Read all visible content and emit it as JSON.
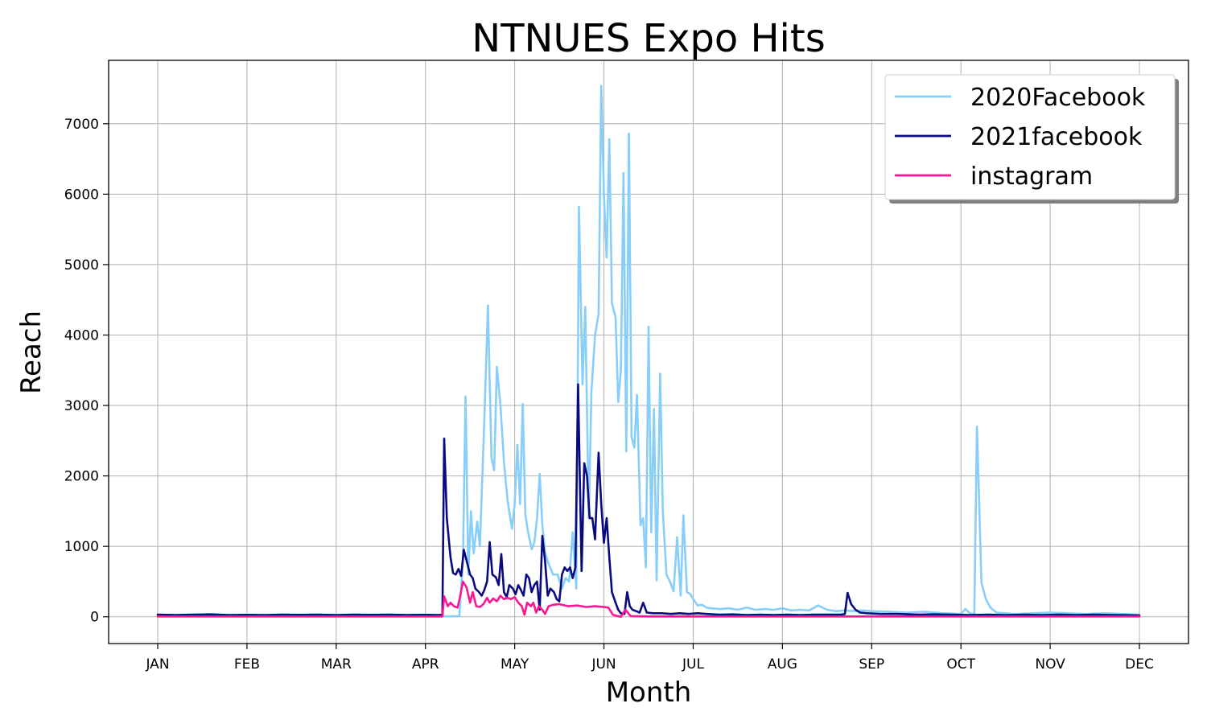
{
  "chart_data": {
    "type": "line",
    "title": "NTNUES Expo Hits",
    "xlabel": "Month",
    "ylabel": "Reach",
    "xlim": [
      -0.55,
      11.55
    ],
    "ylim": [
      -380,
      7900
    ],
    "grid": true,
    "legend_position": "top-right",
    "x_ticks": [
      "JAN",
      "FEB",
      "MAR",
      "APR",
      "MAY",
      "JUN",
      "JUL",
      "AUG",
      "SEP",
      "OCT",
      "NOV",
      "DEC"
    ],
    "y_ticks": [
      0,
      1000,
      2000,
      3000,
      4000,
      5000,
      6000,
      7000
    ],
    "series": [
      {
        "name": "2020Facebook",
        "color": "#87cefa",
        "points": [
          [
            0.0,
            15
          ],
          [
            1.0,
            12
          ],
          [
            2.0,
            10
          ],
          [
            3.0,
            8
          ],
          [
            3.2,
            5
          ],
          [
            3.38,
            10
          ],
          [
            3.42,
            800
          ],
          [
            3.45,
            3130
          ],
          [
            3.48,
            600
          ],
          [
            3.51,
            1500
          ],
          [
            3.54,
            900
          ],
          [
            3.58,
            1350
          ],
          [
            3.61,
            1000
          ],
          [
            3.66,
            2800
          ],
          [
            3.7,
            4420
          ],
          [
            3.74,
            2250
          ],
          [
            3.77,
            2080
          ],
          [
            3.8,
            3550
          ],
          [
            3.84,
            3000
          ],
          [
            3.88,
            2200
          ],
          [
            3.92,
            1650
          ],
          [
            3.97,
            1250
          ],
          [
            4.0,
            1600
          ],
          [
            4.03,
            2440
          ],
          [
            4.06,
            1600
          ],
          [
            4.09,
            3020
          ],
          [
            4.12,
            1450
          ],
          [
            4.15,
            1200
          ],
          [
            4.19,
            960
          ],
          [
            4.22,
            1050
          ],
          [
            4.25,
            1400
          ],
          [
            4.28,
            2030
          ],
          [
            4.31,
            1300
          ],
          [
            4.34,
            920
          ],
          [
            4.38,
            750
          ],
          [
            4.43,
            600
          ],
          [
            4.48,
            600
          ],
          [
            4.53,
            400
          ],
          [
            4.57,
            550
          ],
          [
            4.61,
            500
          ],
          [
            4.65,
            1200
          ],
          [
            4.69,
            400
          ],
          [
            4.72,
            5820
          ],
          [
            4.76,
            3300
          ],
          [
            4.79,
            4400
          ],
          [
            4.83,
            1400
          ],
          [
            4.86,
            3200
          ],
          [
            4.9,
            4000
          ],
          [
            4.94,
            4300
          ],
          [
            4.97,
            7540
          ],
          [
            5.0,
            6000
          ],
          [
            5.03,
            5100
          ],
          [
            5.06,
            6780
          ],
          [
            5.09,
            4450
          ],
          [
            5.13,
            4250
          ],
          [
            5.16,
            3050
          ],
          [
            5.19,
            3500
          ],
          [
            5.22,
            6300
          ],
          [
            5.25,
            2350
          ],
          [
            5.28,
            6860
          ],
          [
            5.31,
            2550
          ],
          [
            5.34,
            2400
          ],
          [
            5.37,
            3150
          ],
          [
            5.41,
            1300
          ],
          [
            5.44,
            1400
          ],
          [
            5.47,
            700
          ],
          [
            5.5,
            4120
          ],
          [
            5.53,
            1200
          ],
          [
            5.56,
            2950
          ],
          [
            5.59,
            520
          ],
          [
            5.63,
            3450
          ],
          [
            5.66,
            1500
          ],
          [
            5.7,
            600
          ],
          [
            5.74,
            500
          ],
          [
            5.78,
            360
          ],
          [
            5.82,
            1130
          ],
          [
            5.86,
            300
          ],
          [
            5.89,
            1440
          ],
          [
            5.93,
            350
          ],
          [
            5.97,
            320
          ],
          [
            6.0,
            250
          ],
          [
            6.05,
            160
          ],
          [
            6.1,
            170
          ],
          [
            6.15,
            130
          ],
          [
            6.2,
            120
          ],
          [
            6.3,
            110
          ],
          [
            6.4,
            120
          ],
          [
            6.5,
            100
          ],
          [
            6.6,
            130
          ],
          [
            6.7,
            100
          ],
          [
            6.8,
            110
          ],
          [
            6.9,
            100
          ],
          [
            7.0,
            120
          ],
          [
            7.1,
            90
          ],
          [
            7.2,
            100
          ],
          [
            7.3,
            90
          ],
          [
            7.4,
            160
          ],
          [
            7.5,
            100
          ],
          [
            7.6,
            80
          ],
          [
            7.7,
            90
          ],
          [
            7.8,
            80
          ],
          [
            7.9,
            90
          ],
          [
            8.0,
            80
          ],
          [
            8.2,
            70
          ],
          [
            8.4,
            60
          ],
          [
            8.6,
            70
          ],
          [
            8.8,
            50
          ],
          [
            9.0,
            40
          ],
          [
            9.05,
            110
          ],
          [
            9.1,
            50
          ],
          [
            9.15,
            30
          ],
          [
            9.18,
            2700
          ],
          [
            9.2,
            1800
          ],
          [
            9.23,
            480
          ],
          [
            9.28,
            250
          ],
          [
            9.33,
            130
          ],
          [
            9.4,
            60
          ],
          [
            9.6,
            40
          ],
          [
            9.8,
            50
          ],
          [
            10.0,
            60
          ],
          [
            10.2,
            50
          ],
          [
            10.4,
            40
          ],
          [
            10.6,
            50
          ],
          [
            10.8,
            40
          ],
          [
            11.0,
            30
          ]
        ]
      },
      {
        "name": "2021facebook",
        "color": "#0a0a80",
        "points": [
          [
            0.0,
            30
          ],
          [
            0.2,
            25
          ],
          [
            0.4,
            30
          ],
          [
            0.6,
            35
          ],
          [
            0.8,
            25
          ],
          [
            1.0,
            28
          ],
          [
            1.2,
            25
          ],
          [
            1.4,
            30
          ],
          [
            1.6,
            28
          ],
          [
            1.8,
            30
          ],
          [
            2.0,
            25
          ],
          [
            2.2,
            30
          ],
          [
            2.4,
            28
          ],
          [
            2.6,
            30
          ],
          [
            2.8,
            25
          ],
          [
            3.0,
            28
          ],
          [
            3.15,
            25
          ],
          [
            3.19,
            30
          ],
          [
            3.21,
            2530
          ],
          [
            3.24,
            1400
          ],
          [
            3.28,
            850
          ],
          [
            3.31,
            620
          ],
          [
            3.34,
            600
          ],
          [
            3.37,
            680
          ],
          [
            3.4,
            580
          ],
          [
            3.43,
            950
          ],
          [
            3.47,
            750
          ],
          [
            3.5,
            600
          ],
          [
            3.53,
            550
          ],
          [
            3.56,
            400
          ],
          [
            3.6,
            350
          ],
          [
            3.63,
            300
          ],
          [
            3.66,
            380
          ],
          [
            3.69,
            500
          ],
          [
            3.72,
            1060
          ],
          [
            3.75,
            600
          ],
          [
            3.79,
            560
          ],
          [
            3.82,
            450
          ],
          [
            3.85,
            890
          ],
          [
            3.88,
            350
          ],
          [
            3.91,
            280
          ],
          [
            3.94,
            450
          ],
          [
            3.98,
            400
          ],
          [
            4.01,
            320
          ],
          [
            4.04,
            450
          ],
          [
            4.07,
            380
          ],
          [
            4.1,
            300
          ],
          [
            4.13,
            600
          ],
          [
            4.16,
            550
          ],
          [
            4.19,
            350
          ],
          [
            4.22,
            450
          ],
          [
            4.25,
            500
          ],
          [
            4.28,
            100
          ],
          [
            4.31,
            1150
          ],
          [
            4.34,
            800
          ],
          [
            4.37,
            300
          ],
          [
            4.4,
            400
          ],
          [
            4.44,
            350
          ],
          [
            4.47,
            250
          ],
          [
            4.5,
            220
          ],
          [
            4.53,
            600
          ],
          [
            4.56,
            700
          ],
          [
            4.59,
            650
          ],
          [
            4.62,
            700
          ],
          [
            4.65,
            550
          ],
          [
            4.68,
            700
          ],
          [
            4.71,
            3300
          ],
          [
            4.75,
            650
          ],
          [
            4.78,
            2180
          ],
          [
            4.81,
            2000
          ],
          [
            4.84,
            1400
          ],
          [
            4.87,
            1400
          ],
          [
            4.9,
            1100
          ],
          [
            4.94,
            2330
          ],
          [
            4.97,
            1600
          ],
          [
            5.0,
            1050
          ],
          [
            5.03,
            1400
          ],
          [
            5.06,
            850
          ],
          [
            5.09,
            350
          ],
          [
            5.13,
            200
          ],
          [
            5.16,
            100
          ],
          [
            5.19,
            50
          ],
          [
            5.23,
            40
          ],
          [
            5.26,
            350
          ],
          [
            5.29,
            150
          ],
          [
            5.32,
            100
          ],
          [
            5.36,
            80
          ],
          [
            5.4,
            60
          ],
          [
            5.44,
            200
          ],
          [
            5.48,
            60
          ],
          [
            5.55,
            50
          ],
          [
            5.65,
            50
          ],
          [
            5.75,
            40
          ],
          [
            5.85,
            50
          ],
          [
            5.95,
            40
          ],
          [
            6.05,
            50
          ],
          [
            6.15,
            40
          ],
          [
            6.3,
            30
          ],
          [
            6.45,
            35
          ],
          [
            6.6,
            25
          ],
          [
            6.75,
            30
          ],
          [
            6.9,
            25
          ],
          [
            7.05,
            30
          ],
          [
            7.2,
            25
          ],
          [
            7.35,
            30
          ],
          [
            7.5,
            30
          ],
          [
            7.65,
            30
          ],
          [
            7.7,
            40
          ],
          [
            7.73,
            340
          ],
          [
            7.77,
            180
          ],
          [
            7.82,
            100
          ],
          [
            7.87,
            60
          ],
          [
            7.95,
            50
          ],
          [
            8.1,
            40
          ],
          [
            8.3,
            40
          ],
          [
            8.5,
            30
          ],
          [
            8.7,
            35
          ],
          [
            8.9,
            30
          ],
          [
            9.1,
            25
          ],
          [
            9.3,
            30
          ],
          [
            9.5,
            25
          ],
          [
            9.7,
            30
          ],
          [
            9.9,
            25
          ],
          [
            10.1,
            30
          ],
          [
            10.3,
            25
          ],
          [
            10.5,
            30
          ],
          [
            10.7,
            25
          ],
          [
            11.0,
            20
          ]
        ]
      },
      {
        "name": "instagram",
        "color": "#ff1493",
        "points": [
          [
            0.0,
            5
          ],
          [
            1.0,
            5
          ],
          [
            2.0,
            5
          ],
          [
            3.0,
            5
          ],
          [
            3.19,
            5
          ],
          [
            3.21,
            290
          ],
          [
            3.25,
            150
          ],
          [
            3.28,
            200
          ],
          [
            3.32,
            150
          ],
          [
            3.36,
            130
          ],
          [
            3.39,
            300
          ],
          [
            3.42,
            500
          ],
          [
            3.46,
            420
          ],
          [
            3.5,
            200
          ],
          [
            3.53,
            350
          ],
          [
            3.57,
            150
          ],
          [
            3.61,
            140
          ],
          [
            3.65,
            180
          ],
          [
            3.69,
            270
          ],
          [
            3.72,
            200
          ],
          [
            3.76,
            260
          ],
          [
            3.8,
            220
          ],
          [
            3.84,
            300
          ],
          [
            3.88,
            250
          ],
          [
            3.92,
            270
          ],
          [
            3.96,
            250
          ],
          [
            4.0,
            280
          ],
          [
            4.04,
            200
          ],
          [
            4.08,
            150
          ],
          [
            4.11,
            30
          ],
          [
            4.14,
            200
          ],
          [
            4.18,
            150
          ],
          [
            4.21,
            200
          ],
          [
            4.24,
            60
          ],
          [
            4.27,
            150
          ],
          [
            4.31,
            100
          ],
          [
            4.34,
            40
          ],
          [
            4.38,
            150
          ],
          [
            4.43,
            170
          ],
          [
            4.5,
            180
          ],
          [
            4.6,
            150
          ],
          [
            4.7,
            160
          ],
          [
            4.8,
            140
          ],
          [
            4.9,
            150
          ],
          [
            5.0,
            140
          ],
          [
            5.05,
            130
          ],
          [
            5.1,
            30
          ],
          [
            5.15,
            10
          ],
          [
            5.19,
            0
          ],
          [
            5.24,
            100
          ],
          [
            5.3,
            10
          ],
          [
            5.5,
            5
          ],
          [
            6.0,
            5
          ],
          [
            7.0,
            5
          ],
          [
            8.0,
            5
          ],
          [
            9.0,
            5
          ],
          [
            10.0,
            5
          ],
          [
            11.0,
            5
          ]
        ]
      }
    ]
  }
}
